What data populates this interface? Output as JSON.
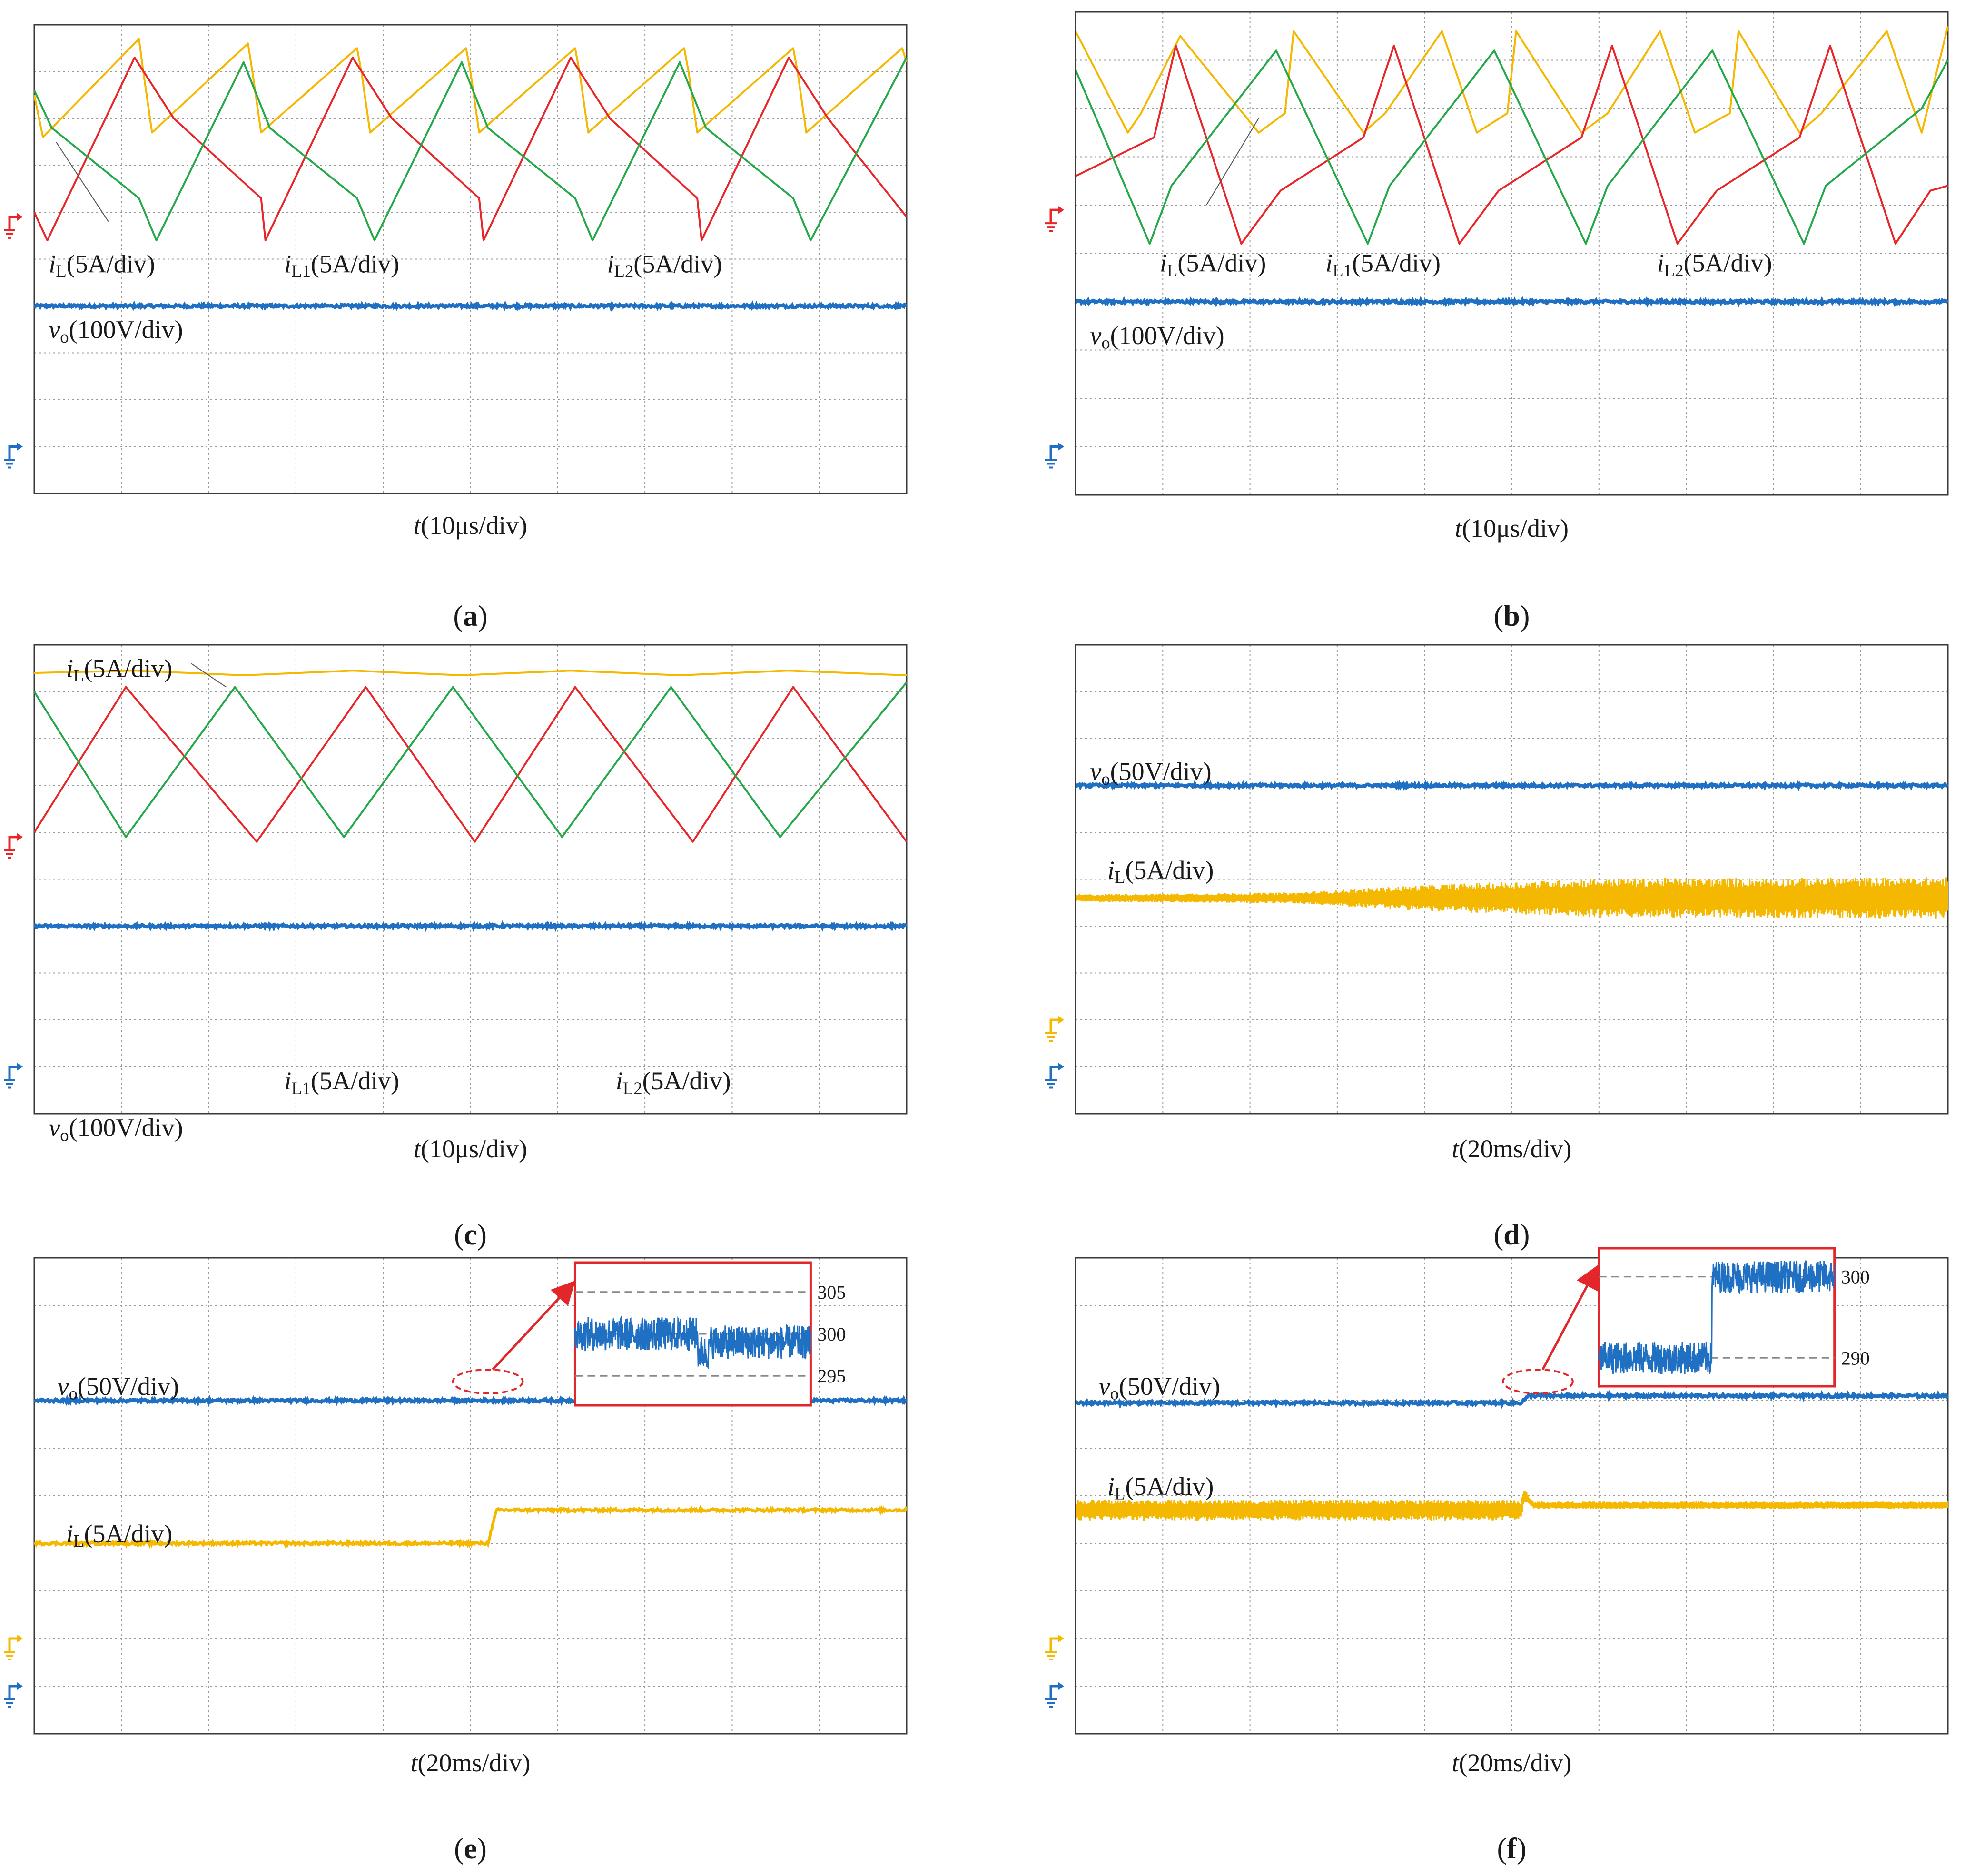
{
  "colors": {
    "iL": "#f5b800",
    "iL1": "#e8262a",
    "iL2": "#24a84a",
    "vo": "#1f6fc2",
    "grid": "#9a9a9a",
    "frame": "#3a3a3a",
    "inset": "#e3262a"
  },
  "chart_data": [
    {
      "panel": "a",
      "caption": "a",
      "type": "line",
      "title": "",
      "xlabel": "t(10μs/div)",
      "x_unit_per_div": "10μs/div",
      "grid": true,
      "divisions": {
        "x": 10,
        "y": 10
      },
      "xlim": [
        0,
        10
      ],
      "ylim": [
        0,
        10
      ],
      "ground_markers": [
        "iL1",
        "vo"
      ],
      "series": [
        {
          "key": "iL",
          "name": "iL(5A/div)",
          "label_parts": [
            "i",
            "L",
            "(5A/div)"
          ],
          "x": [
            0.0,
            0.1,
            1.2,
            1.25,
            1.35,
            2.45,
            2.5,
            2.6,
            3.7,
            3.75,
            3.85,
            4.95,
            5.0,
            5.1,
            6.2,
            6.25,
            6.35,
            7.45,
            7.5,
            7.6,
            8.7,
            8.75,
            8.85,
            9.95,
            10.0
          ],
          "y": [
            8.5,
            7.6,
            9.7,
            9.0,
            7.7,
            9.6,
            9.0,
            7.7,
            9.5,
            9.0,
            7.7,
            9.5,
            9.0,
            7.7,
            9.5,
            9.0,
            7.7,
            9.5,
            9.0,
            7.7,
            9.5,
            9.0,
            7.7,
            9.5,
            9.2
          ]
        },
        {
          "key": "iL1",
          "name": "iL1(5A/div)",
          "label_parts": [
            "i",
            "L1",
            "(5A/div)"
          ],
          "x": [
            0.0,
            0.15,
            1.15,
            1.6,
            2.6,
            2.65,
            3.65,
            4.1,
            5.1,
            5.15,
            6.15,
            6.6,
            7.6,
            7.65,
            8.65,
            9.1,
            10.0
          ],
          "y": [
            6.0,
            5.4,
            9.3,
            8.0,
            6.3,
            5.4,
            9.3,
            8.0,
            6.3,
            5.4,
            9.3,
            8.0,
            6.3,
            5.4,
            9.3,
            8.0,
            5.9
          ]
        },
        {
          "key": "iL2",
          "name": "iL2(5A/div)",
          "label_parts": [
            "i",
            "L2",
            "(5A/div)"
          ],
          "x": [
            0.0,
            0.2,
            1.2,
            1.4,
            2.4,
            2.7,
            3.7,
            3.9,
            4.9,
            5.2,
            6.2,
            6.4,
            7.4,
            7.7,
            8.7,
            8.9,
            10.0
          ],
          "y": [
            8.6,
            7.8,
            6.3,
            5.4,
            9.2,
            7.8,
            6.3,
            5.4,
            9.2,
            7.8,
            6.3,
            5.4,
            9.2,
            7.8,
            6.3,
            5.4,
            9.3
          ]
        },
        {
          "key": "vo",
          "name": "vo(100V/div)",
          "label_parts": [
            "v",
            "o",
            "(100V/div)"
          ],
          "x": [
            0,
            10
          ],
          "y": [
            4.0,
            4.0
          ]
        }
      ]
    },
    {
      "panel": "b",
      "caption": "b",
      "type": "line",
      "title": "",
      "xlabel": "t(10μs/div)",
      "x_unit_per_div": "10μs/div",
      "grid": true,
      "divisions": {
        "x": 10,
        "y": 10
      },
      "xlim": [
        0,
        10
      ],
      "ylim": [
        0,
        10
      ],
      "ground_markers": [
        "iL1",
        "vo"
      ],
      "series": [
        {
          "key": "iL",
          "name": "iL(5A/div)",
          "label_parts": [
            "i",
            "L",
            "(5A/div)"
          ],
          "x": [
            0.0,
            0.6,
            0.75,
            1.2,
            2.1,
            2.4,
            2.5,
            3.3,
            3.55,
            4.2,
            4.6,
            4.95,
            5.05,
            5.8,
            6.1,
            6.7,
            7.1,
            7.5,
            7.6,
            8.3,
            8.55,
            9.3,
            9.7,
            10.0
          ],
          "y": [
            9.6,
            7.5,
            7.9,
            9.5,
            7.5,
            7.9,
            9.6,
            7.5,
            7.9,
            9.6,
            7.5,
            7.9,
            9.6,
            7.5,
            7.9,
            9.6,
            7.5,
            7.9,
            9.6,
            7.5,
            7.9,
            9.6,
            7.5,
            9.7
          ]
        },
        {
          "key": "iL1",
          "name": "iL1(5A/div)",
          "label_parts": [
            "i",
            "L1",
            "(5A/div)"
          ],
          "x": [
            0.0,
            0.9,
            1.15,
            1.9,
            2.35,
            3.3,
            3.65,
            4.4,
            4.85,
            5.8,
            6.15,
            6.9,
            7.35,
            8.3,
            8.65,
            9.4,
            9.8,
            10.0
          ],
          "y": [
            6.6,
            7.4,
            9.3,
            5.2,
            6.3,
            7.4,
            9.3,
            5.2,
            6.3,
            7.4,
            9.3,
            5.2,
            6.3,
            7.4,
            9.3,
            5.2,
            6.3,
            6.4
          ]
        },
        {
          "key": "iL2",
          "name": "iL2(5A/div)",
          "label_parts": [
            "i",
            "L2",
            "(5A/div)"
          ],
          "x": [
            0.0,
            0.85,
            1.1,
            2.3,
            3.35,
            3.6,
            4.8,
            5.85,
            6.1,
            7.3,
            8.35,
            8.6,
            9.7,
            10.0
          ],
          "y": [
            8.8,
            5.2,
            6.4,
            9.2,
            5.2,
            6.4,
            9.2,
            5.2,
            6.4,
            9.2,
            5.2,
            6.4,
            8.0,
            9.0
          ]
        },
        {
          "key": "vo",
          "name": "vo(100V/div)",
          "label_parts": [
            "v",
            "o",
            "(100V/div)"
          ],
          "x": [
            0,
            10
          ],
          "y": [
            4.0,
            4.0
          ]
        }
      ]
    },
    {
      "panel": "c",
      "caption": "c",
      "type": "line",
      "title": "",
      "xlabel": "t(10μs/div)",
      "x_unit_per_div": "10μs/div",
      "grid": true,
      "divisions": {
        "x": 10,
        "y": 10
      },
      "xlim": [
        0,
        10
      ],
      "ylim": [
        0,
        10
      ],
      "ground_markers": [
        "iL1",
        "vo"
      ],
      "series": [
        {
          "key": "iL",
          "name": "iL(5A/div)",
          "label_parts": [
            "i",
            "L",
            "(5A/div)"
          ],
          "x": [
            0.0,
            1.15,
            2.4,
            3.65,
            4.9,
            6.15,
            7.4,
            8.65,
            10.0
          ],
          "y": [
            9.4,
            9.45,
            9.35,
            9.45,
            9.35,
            9.45,
            9.35,
            9.45,
            9.35
          ]
        },
        {
          "key": "iL1",
          "name": "iL1(5A/div)",
          "label_parts": [
            "i",
            "L1",
            "(5A/div)"
          ],
          "x": [
            0.0,
            1.05,
            2.55,
            3.8,
            5.05,
            6.2,
            7.55,
            8.7,
            10.0
          ],
          "y": [
            6.0,
            9.1,
            5.8,
            9.1,
            5.8,
            9.1,
            5.8,
            9.1,
            5.8
          ]
        },
        {
          "key": "iL2",
          "name": "iL2(5A/div)",
          "label_parts": [
            "i",
            "L2",
            "(5A/div)"
          ],
          "x": [
            0.0,
            1.05,
            2.3,
            3.55,
            4.8,
            6.05,
            7.3,
            8.55,
            10.0
          ],
          "y": [
            9.0,
            5.9,
            9.1,
            5.9,
            9.1,
            5.9,
            9.1,
            5.9,
            9.2
          ]
        },
        {
          "key": "vo",
          "name": "vo(100V/div)",
          "label_parts": [
            "v",
            "o",
            "(100V/div)"
          ],
          "x": [
            0,
            10
          ],
          "y": [
            4.0,
            4.0
          ]
        }
      ]
    },
    {
      "panel": "d",
      "caption": "d",
      "type": "line",
      "title": "",
      "xlabel": "t(20ms/div)",
      "x_unit_per_div": "20ms/div",
      "grid": true,
      "divisions": {
        "x": 10,
        "y": 10
      },
      "xlim": [
        0,
        10
      ],
      "ylim": [
        0,
        10
      ],
      "ground_markers": [
        "iL",
        "vo"
      ],
      "series": [
        {
          "key": "vo",
          "name": "vo(50V/div)",
          "label_parts": [
            "v",
            "o",
            "(50V/div)"
          ],
          "x": [
            0,
            10
          ],
          "y": [
            7.0,
            7.0
          ]
        },
        {
          "key": "iL",
          "name": "iL(5A/div)",
          "label_parts": [
            "i",
            "L",
            "(5A/div)"
          ],
          "x": [
            0,
            2.5,
            4.0,
            6.0,
            10.0
          ],
          "y": [
            4.6,
            4.6,
            4.6,
            4.6,
            4.6
          ],
          "ripple_envelope": {
            "x": [
              0,
              2.5,
              4.0,
              6.0,
              10.0
            ],
            "amplitude": [
              0.08,
              0.12,
              0.28,
              0.42,
              0.45
            ]
          }
        }
      ]
    },
    {
      "panel": "e",
      "caption": "e",
      "type": "line",
      "title": "",
      "xlabel": "t(20ms/div)",
      "x_unit_per_div": "20ms/div",
      "grid": true,
      "divisions": {
        "x": 10,
        "y": 10
      },
      "xlim": [
        0,
        10
      ],
      "ylim": [
        0,
        10
      ],
      "ground_markers": [
        "iL",
        "vo"
      ],
      "series": [
        {
          "key": "vo",
          "name": "vo(50V/div)",
          "label_parts": [
            "v",
            "o",
            "(50V/div)"
          ],
          "x": [
            0,
            10
          ],
          "y": [
            7.0,
            7.0
          ]
        },
        {
          "key": "iL",
          "name": "iL(5A/div)",
          "label_parts": [
            "i",
            "L",
            "(5A/div)"
          ],
          "x": [
            0,
            5.2,
            5.3,
            10.0
          ],
          "y": [
            4.0,
            4.0,
            4.7,
            4.7
          ]
        }
      ],
      "inset": {
        "series": "vo",
        "ticks": [
          "305",
          "300",
          "295"
        ],
        "tick_values": [
          305,
          300,
          295
        ],
        "step_x_fraction": 0.52,
        "before": 300.0,
        "after": 299.0
      }
    },
    {
      "panel": "f",
      "caption": "f",
      "type": "line",
      "title": "",
      "xlabel": "t(20ms/div)",
      "x_unit_per_div": "20ms/div",
      "grid": true,
      "divisions": {
        "x": 10,
        "y": 10
      },
      "xlim": [
        0,
        10
      ],
      "ylim": [
        0,
        10
      ],
      "ground_markers": [
        "iL",
        "vo"
      ],
      "series": [
        {
          "key": "vo",
          "name": "vo(50V/div)",
          "label_parts": [
            "v",
            "o",
            "(50V/div)"
          ],
          "x": [
            0,
            5.1,
            5.2,
            10.0
          ],
          "y": [
            6.95,
            6.95,
            7.1,
            7.1
          ]
        },
        {
          "key": "iL",
          "name": "iL(5A/div)",
          "label_parts": [
            "i",
            "L",
            "(5A/div)"
          ],
          "x": [
            0,
            5.1,
            5.15,
            5.25,
            10.0
          ],
          "y": [
            4.7,
            4.7,
            5.0,
            4.8,
            4.8
          ],
          "ripple_envelope": {
            "x": [
              0,
              5.1,
              5.2,
              10.0
            ],
            "amplitude": [
              0.22,
              0.22,
              0.08,
              0.08
            ]
          }
        }
      ],
      "inset": {
        "series": "vo",
        "ticks": [
          "300",
          "290"
        ],
        "tick_values": [
          300,
          290
        ],
        "step_x_fraction": 0.48,
        "before": 290.0,
        "after": 300.0
      }
    }
  ]
}
